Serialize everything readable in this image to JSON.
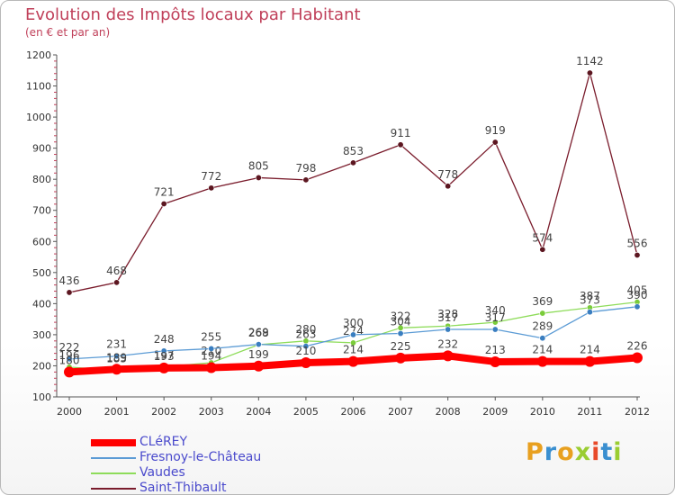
{
  "header": {
    "title": "Evolution des Impôts locaux par Habitant",
    "subtitle": "(en € et par an)"
  },
  "logo": {
    "text": "Proxiti"
  },
  "chart_data": {
    "type": "line",
    "title": "Evolution des Impôts locaux par Habitant",
    "subtitle": "(en € et par an)",
    "xlabel": "",
    "ylabel": "",
    "ylim": [
      100,
      1200
    ],
    "yticks": [
      100,
      200,
      300,
      400,
      500,
      600,
      700,
      800,
      900,
      1000,
      1100,
      1200
    ],
    "grid": false,
    "legend_position": "bottom-left",
    "x": [
      "2000",
      "2001",
      "2002",
      "2003",
      "2004",
      "2005",
      "2006",
      "2007",
      "2008",
      "2009",
      "2010",
      "2011",
      "2012"
    ],
    "series": [
      {
        "name": "CLéREY",
        "color": "#ff0000",
        "style": "thick",
        "values": [
          180,
          189,
          193,
          194,
          199,
          210,
          214,
          225,
          232,
          213,
          214,
          214,
          226
        ],
        "labels": [
          "180",
          "189",
          "193",
          "194",
          "199",
          "210",
          "214",
          "225",
          "232",
          "213",
          "214",
          "214",
          "226"
        ]
      },
      {
        "name": "Fresnoy-le-Château",
        "color": "#5b9bd5",
        "point_color": "#3a7ec0",
        "values": [
          222,
          231,
          248,
          255,
          269,
          263,
          300,
          304,
          317,
          317,
          289,
          373,
          390
        ],
        "labels": [
          "222",
          "231",
          "248",
          "255",
          "269",
          "263",
          "300",
          "304",
          "317",
          "317",
          "289",
          "373",
          "390"
        ]
      },
      {
        "name": "Vaudes",
        "color": "#8edc5a",
        "point_color": "#7acc3a",
        "values": [
          196,
          185,
          197,
          210,
          268,
          280,
          274,
          322,
          328,
          340,
          369,
          387,
          405
        ],
        "labels": [
          "196",
          "185",
          "197",
          "210",
          "268",
          "280",
          "274",
          "322",
          "328",
          "340",
          "369",
          "387",
          "405"
        ]
      },
      {
        "name": "Saint-Thibault",
        "color": "#7a1c2c",
        "point_color": "#5c1620",
        "values": [
          436,
          468,
          721,
          772,
          805,
          798,
          853,
          911,
          778,
          919,
          574,
          1142,
          556
        ],
        "labels": [
          "436",
          "468",
          "721",
          "772",
          "805",
          "798",
          "853",
          "911",
          "778",
          "919",
          "574",
          "1142",
          "556"
        ]
      }
    ]
  }
}
